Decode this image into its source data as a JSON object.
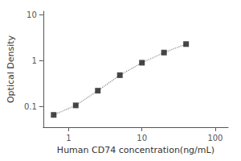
{
  "chart_data": {
    "type": "line",
    "x_label": "Human CD74 concentration(ng/mL)",
    "y_label": "Optical Density",
    "x": [
      0.625,
      1.25,
      2.5,
      5,
      10,
      20,
      40
    ],
    "series": [
      {
        "type": "line",
        "color": "#888888",
        "line_style": "dotted",
        "values": [
          0.065,
          0.105,
          0.22,
          0.48,
          0.9,
          1.5,
          2.3
        ]
      },
      {
        "type": "scatter",
        "color": "#1a1a1a",
        "marker": "square",
        "values": [
          0.065,
          0.105,
          0.22,
          0.48,
          0.9,
          1.5,
          2.3
        ]
      }
    ],
    "log": true,
    "xlim": [
      0.45,
      150
    ],
    "ylim": [
      0.035,
      12
    ],
    "xticks": [
      1,
      10,
      100
    ],
    "yticks": [
      0.1,
      1,
      10
    ],
    "grid": false
  }
}
